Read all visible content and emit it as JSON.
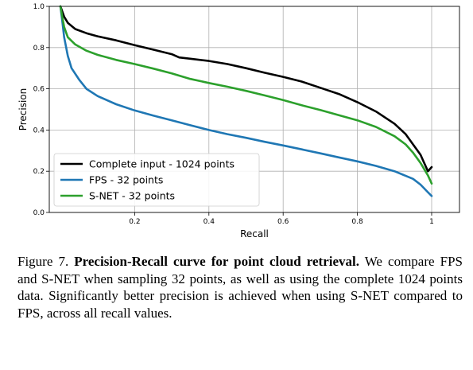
{
  "chart_data": {
    "type": "line",
    "xlabel": "Recall",
    "ylabel": "Precision",
    "xlim": [
      0.0,
      1.0
    ],
    "ylim": [
      0.0,
      1.0
    ],
    "xticks": [
      0.2,
      0.4,
      0.6,
      0.8,
      1.0
    ],
    "xtick_labels": [
      "0.2",
      "0.4",
      "0.6",
      "0.8",
      "1"
    ],
    "yticks": [
      0.0,
      0.2,
      0.4,
      0.6,
      0.8,
      1.0
    ],
    "ytick_labels": [
      "0.0",
      "0.2",
      "0.4",
      "0.6",
      "0.8",
      "1.0"
    ],
    "grid": true,
    "legend_position": "lower-left",
    "series": [
      {
        "name": "Complete input - 1024 points",
        "color": "#000000",
        "x": [
          0.0,
          0.01,
          0.02,
          0.04,
          0.07,
          0.1,
          0.15,
          0.2,
          0.25,
          0.3,
          0.32,
          0.35,
          0.4,
          0.45,
          0.5,
          0.55,
          0.6,
          0.65,
          0.7,
          0.75,
          0.8,
          0.85,
          0.9,
          0.93,
          0.95,
          0.97,
          0.98,
          0.99,
          1.0
        ],
        "y": [
          1.0,
          0.95,
          0.92,
          0.89,
          0.87,
          0.855,
          0.835,
          0.812,
          0.79,
          0.768,
          0.752,
          0.746,
          0.735,
          0.72,
          0.7,
          0.678,
          0.658,
          0.635,
          0.605,
          0.575,
          0.535,
          0.49,
          0.43,
          0.38,
          0.33,
          0.28,
          0.24,
          0.2,
          0.22
        ]
      },
      {
        "name": "FPS - 32 points",
        "color": "#1f77b4",
        "x": [
          0.0,
          0.005,
          0.01,
          0.02,
          0.03,
          0.05,
          0.07,
          0.1,
          0.15,
          0.2,
          0.25,
          0.3,
          0.35,
          0.4,
          0.45,
          0.5,
          0.55,
          0.6,
          0.65,
          0.7,
          0.75,
          0.8,
          0.85,
          0.9,
          0.95,
          0.97,
          0.99,
          1.0
        ],
        "y": [
          1.0,
          0.93,
          0.85,
          0.76,
          0.7,
          0.645,
          0.6,
          0.565,
          0.525,
          0.495,
          0.47,
          0.447,
          0.423,
          0.4,
          0.38,
          0.362,
          0.343,
          0.325,
          0.306,
          0.287,
          0.267,
          0.248,
          0.226,
          0.2,
          0.163,
          0.135,
          0.098,
          0.08
        ]
      },
      {
        "name": "S-NET - 32 points",
        "color": "#2ca02c",
        "x": [
          0.0,
          0.005,
          0.01,
          0.02,
          0.04,
          0.07,
          0.1,
          0.15,
          0.2,
          0.25,
          0.3,
          0.35,
          0.4,
          0.45,
          0.5,
          0.55,
          0.6,
          0.65,
          0.7,
          0.75,
          0.8,
          0.85,
          0.9,
          0.93,
          0.95,
          0.97,
          0.99,
          1.0
        ],
        "y": [
          1.0,
          0.95,
          0.9,
          0.85,
          0.815,
          0.785,
          0.765,
          0.74,
          0.72,
          0.698,
          0.675,
          0.648,
          0.628,
          0.61,
          0.59,
          0.568,
          0.545,
          0.52,
          0.497,
          0.472,
          0.447,
          0.415,
          0.37,
          0.33,
          0.29,
          0.24,
          0.18,
          0.14
        ]
      }
    ]
  },
  "caption": {
    "lead": "Figure 7. ",
    "bold": "Precision-Recall curve for point cloud retrieval.",
    "rest": " We compare FPS and S-NET when sampling 32 points, as well as using the complete 1024 points data. Significantly better precision is achieved when using S-NET compared to FPS, across all recall values."
  }
}
